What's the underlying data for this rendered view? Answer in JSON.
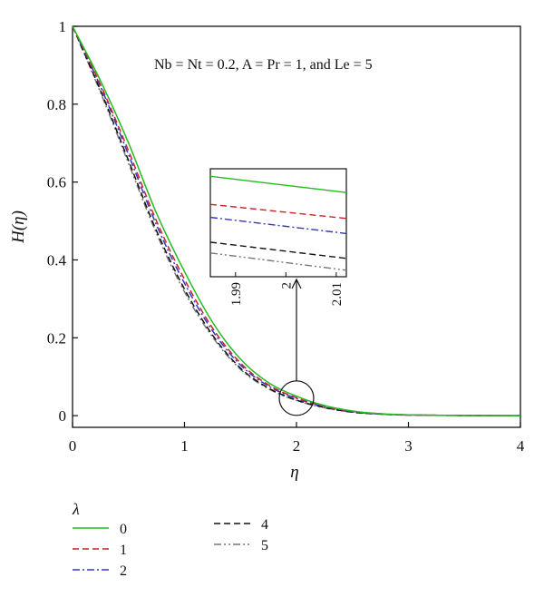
{
  "chart_data": {
    "type": "line",
    "title": "",
    "annotation": "Nb = Nt = 0.2, A = Pr = 1, and Le = 5",
    "xlabel": "η",
    "ylabel": "H(η)",
    "xlim": [
      0,
      4
    ],
    "ylim": [
      -0.03,
      1.0
    ],
    "x_ticks": [
      0,
      1,
      2,
      3,
      4
    ],
    "x_tick_labels": [
      "0",
      "1",
      "2",
      "3",
      "4"
    ],
    "y_ticks": [
      0,
      0.2,
      0.4,
      0.6,
      0.8,
      1
    ],
    "y_tick_labels": [
      "0",
      "0.2",
      "0.4",
      "0.6",
      "0.8",
      "1"
    ],
    "grid": false,
    "legend_title": "λ",
    "legend_position": "below",
    "x": [
      0,
      0.25,
      0.5,
      0.75,
      1.0,
      1.25,
      1.5,
      1.75,
      2.0,
      2.25,
      2.5,
      2.75,
      3.0,
      3.5,
      4.0
    ],
    "series": [
      {
        "name": "0",
        "color": "#22bb22",
        "dash": "solid",
        "values": [
          1.0,
          0.86,
          0.7,
          0.52,
          0.37,
          0.24,
          0.145,
          0.085,
          0.05,
          0.026,
          0.012,
          0.005,
          0.002,
          0.0005,
          0.0
        ]
      },
      {
        "name": "1",
        "color": "#cc2222",
        "dash": "dashed",
        "values": [
          1.0,
          0.85,
          0.68,
          0.5,
          0.35,
          0.225,
          0.135,
          0.079,
          0.046,
          0.024,
          0.011,
          0.005,
          0.002,
          0.0005,
          0.0
        ]
      },
      {
        "name": "2",
        "color": "#3333cc",
        "dash": "dashdot",
        "values": [
          1.0,
          0.845,
          0.67,
          0.49,
          0.34,
          0.218,
          0.13,
          0.076,
          0.044,
          0.023,
          0.01,
          0.004,
          0.002,
          0.0005,
          0.0
        ]
      },
      {
        "name": "4",
        "color": "#111111",
        "dash": "dashed",
        "values": [
          1.0,
          0.835,
          0.655,
          0.475,
          0.325,
          0.207,
          0.122,
          0.071,
          0.04,
          0.021,
          0.009,
          0.004,
          0.0015,
          0.0004,
          0.0
        ]
      },
      {
        "name": "5",
        "color": "#777777",
        "dash": "dashdotdot",
        "values": [
          1.0,
          0.83,
          0.648,
          0.468,
          0.318,
          0.202,
          0.119,
          0.069,
          0.039,
          0.02,
          0.009,
          0.004,
          0.0015,
          0.0004,
          0.0
        ]
      }
    ],
    "inset": {
      "x_ticks": [
        1.99,
        2,
        2.01
      ],
      "x_tick_labels": [
        "1.99",
        "2",
        "2.01"
      ],
      "xlim": [
        1.985,
        2.012
      ],
      "magnified_point": [
        2.0,
        0.045
      ],
      "lines": [
        {
          "name": "0",
          "y_start": 0.93,
          "y_end": 0.78
        },
        {
          "name": "1",
          "y_start": 0.67,
          "y_end": 0.54
        },
        {
          "name": "2",
          "y_start": 0.55,
          "y_end": 0.4
        },
        {
          "name": "4",
          "y_start": 0.32,
          "y_end": 0.17
        },
        {
          "name": "5",
          "y_start": 0.22,
          "y_end": 0.06
        }
      ]
    }
  }
}
